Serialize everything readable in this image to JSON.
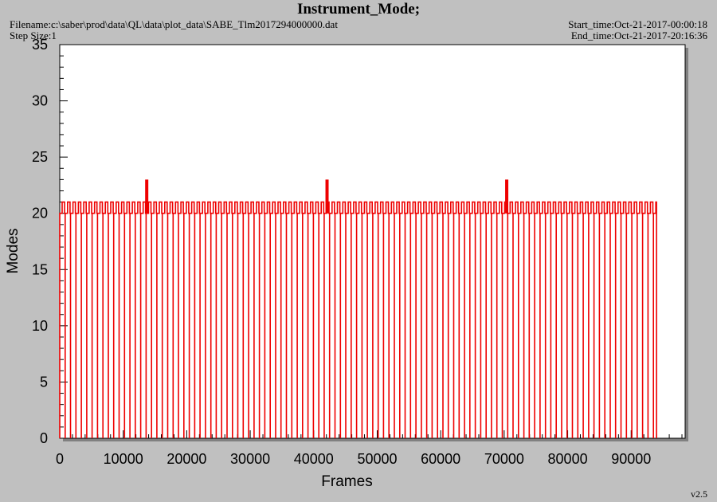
{
  "header": {
    "title": "Instrument_Mode;",
    "filename": "Filename:c:\\saber\\prod\\data\\QL\\data\\plot_data\\SABE_Tlm2017294000000.dat",
    "step_size": "Step Size:1",
    "start_time": "Start_time:Oct-21-2017-00:00:18",
    "end_time": "End_time:Oct-21-2017-20:16:36"
  },
  "footer": {
    "version": "v2.5"
  },
  "colors": {
    "series": "#ee0000",
    "plot_bg": "#ffffff",
    "page_bg": "#c0c0c0",
    "shadow": "#808080"
  },
  "chart_data": {
    "type": "line",
    "title": "Instrument_Mode;",
    "xlabel": "Frames",
    "ylabel": "Modes",
    "xlim": [
      0,
      98500
    ],
    "ylim": [
      0,
      35
    ],
    "xticks": [
      0,
      10000,
      20000,
      30000,
      40000,
      50000,
      60000,
      70000,
      80000,
      90000
    ],
    "yticks": [
      0,
      5,
      10,
      15,
      20,
      25,
      30,
      35
    ],
    "x_tick_labels": [
      "0",
      "10000",
      "20000",
      "30000",
      "40000",
      "50000",
      "60000",
      "70000",
      "80000",
      "90000"
    ],
    "y_tick_labels": [
      "0",
      "5",
      "10",
      "15",
      "20",
      "25",
      "30",
      "35"
    ],
    "grid": false,
    "series": [
      {
        "baseline_value": 20,
        "cycle_peak_value": 21,
        "drop_value": 0,
        "x_start": 0,
        "x_end": 94000,
        "cycle_frames": 850,
        "spike_value": 23,
        "spike_x": [
          13700,
          42100,
          70400
        ]
      }
    ]
  }
}
